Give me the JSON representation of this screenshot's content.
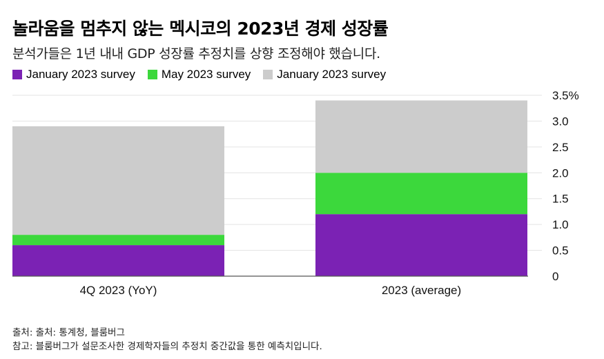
{
  "header": {
    "title": "놀라움을 멈추지 않는 멕시코의 2023년 경제 성장률",
    "subtitle": "분석가들은 1년 내내 GDP 성장률 추정치를 상향 조정해야 했습니다."
  },
  "legend": [
    {
      "label": "January 2023 survey",
      "color": "#7b22b4"
    },
    {
      "label": "May 2023 survey",
      "color": "#3cd83c"
    },
    {
      "label": "January 2023 survey",
      "color": "#cccccc"
    }
  ],
  "chart_data": {
    "type": "bar",
    "stacked": true,
    "categories": [
      "4Q 2023 (YoY)",
      "2023 (average)"
    ],
    "series": [
      {
        "name": "January 2023 survey",
        "color": "#7b22b4",
        "values": [
          0.6,
          1.2
        ]
      },
      {
        "name": "May 2023 survey",
        "color": "#3cd83c",
        "values": [
          0.2,
          0.8
        ]
      },
      {
        "name": "January 2023 survey",
        "color": "#cccccc",
        "values": [
          2.1,
          1.4
        ]
      }
    ],
    "ylim": [
      0,
      3.5
    ],
    "yticks": [
      {
        "value": 3.5,
        "label": "3.5%"
      },
      {
        "value": 3.0,
        "label": "3.0"
      },
      {
        "value": 2.5,
        "label": "2.5"
      },
      {
        "value": 2.0,
        "label": "2.0"
      },
      {
        "value": 1.5,
        "label": "1.5"
      },
      {
        "value": 1.0,
        "label": "1.0"
      },
      {
        "value": 0.5,
        "label": "0.5"
      },
      {
        "value": 0,
        "label": "0"
      }
    ],
    "title": "놀라움을 멈추지 않는 멕시코의 2023년 경제 성장률",
    "xlabel": "",
    "ylabel": "",
    "y_axis_position": "right"
  },
  "footer": {
    "source": "출처: 출처: 통계청, 블룸버그",
    "note": "참고: 블룸버그가 설문조사한 경제학자들의 추정치 중간값을 통한 예측치입니다."
  }
}
